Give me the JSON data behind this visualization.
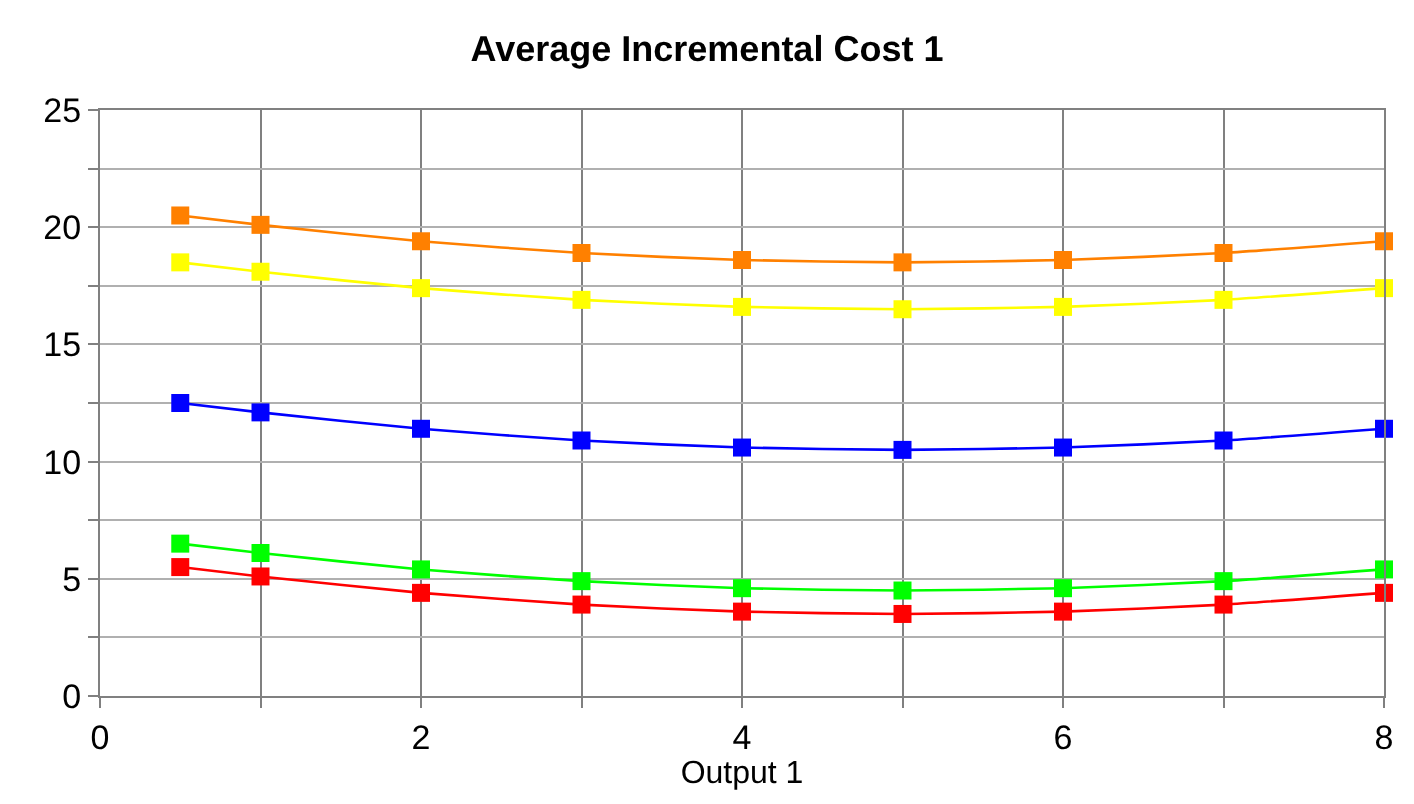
{
  "chart_data": {
    "type": "line",
    "title": "Average Incremental Cost 1",
    "xlabel": "Output 1",
    "x": [
      0.5,
      1,
      2,
      3,
      4,
      5,
      6,
      7,
      8
    ],
    "series": [
      {
        "color": "#ff8000",
        "values": [
          20.5,
          20.1,
          19.4,
          18.9,
          18.6,
          18.5,
          18.6,
          18.9,
          19.4
        ]
      },
      {
        "color": "#ffff00",
        "values": [
          18.5,
          18.1,
          17.4,
          16.9,
          16.6,
          16.5,
          16.6,
          16.9,
          17.4
        ]
      },
      {
        "color": "#0000ff",
        "values": [
          12.5,
          12.1,
          11.4,
          10.9,
          10.6,
          10.5,
          10.6,
          10.9,
          11.4
        ]
      },
      {
        "color": "#00ff00",
        "values": [
          6.5,
          6.1,
          5.4,
          4.9,
          4.6,
          4.5,
          4.6,
          4.9,
          5.4
        ]
      },
      {
        "color": "#ff0000",
        "values": [
          5.5,
          5.1,
          4.4,
          3.9,
          3.6,
          3.5,
          3.6,
          3.9,
          4.4
        ]
      }
    ],
    "xlim": [
      0,
      8
    ],
    "xticks": [
      0,
      {
        "value": 1,
        "label": null
      },
      2,
      {
        "value": 3,
        "label": null
      },
      4,
      {
        "value": 5,
        "label": null
      },
      6,
      {
        "value": 7,
        "label": null
      },
      8
    ],
    "ylim": [
      0,
      25
    ],
    "yticks": [
      0,
      {
        "value": 2.5,
        "label": null
      },
      5,
      {
        "value": 7.5,
        "label": null
      },
      10,
      {
        "value": 12.5,
        "label": null
      },
      15,
      {
        "value": 17.5,
        "label": null
      },
      20,
      {
        "value": 22.5,
        "label": null
      },
      25
    ],
    "grid": true,
    "marker": "square",
    "line_style": "solid"
  }
}
